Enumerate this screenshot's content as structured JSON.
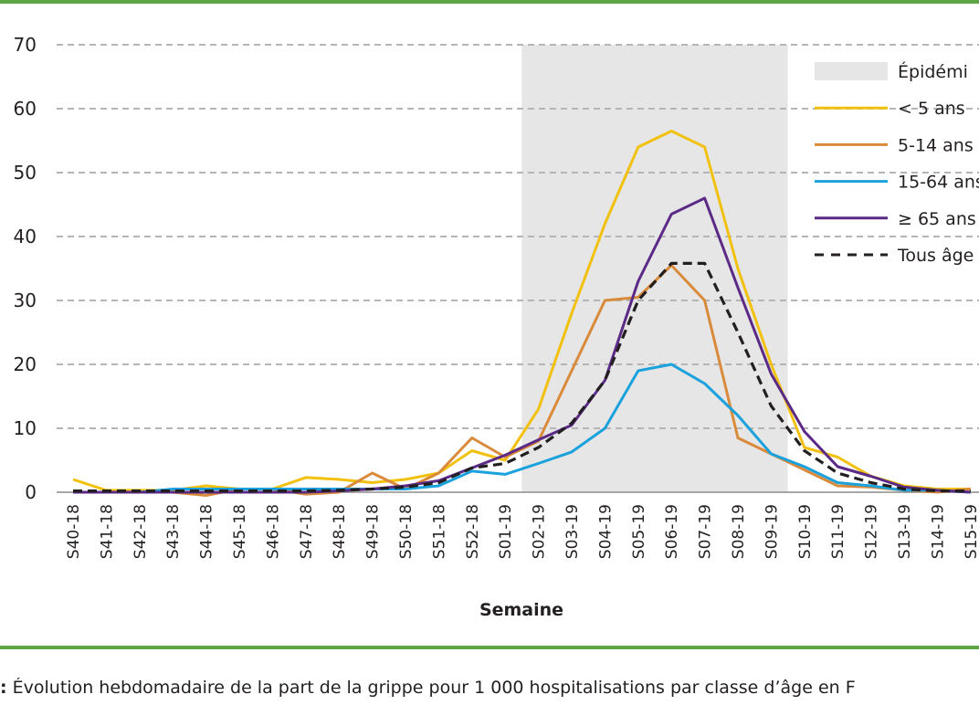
{
  "colors": {
    "rule": "#5ea545",
    "band": "#e6e6e6",
    "grid": "#b5b5b5"
  },
  "caption": {
    "prefix": ":",
    "text": " Évolution hebdomadaire de la part de la grippe pour 1 000 hospitalisations par classe d’âge en F"
  },
  "chart_data": {
    "type": "line",
    "title": "",
    "xlabel": "Semaine",
    "ylabel": "",
    "ylim": [
      0,
      70
    ],
    "yticks": [
      0,
      10,
      20,
      30,
      40,
      50,
      60,
      70
    ],
    "grid": true,
    "legend_position": "top-right",
    "categories": [
      "S40-18",
      "S41-18",
      "S42-18",
      "S43-18",
      "S44-18",
      "S45-18",
      "S46-18",
      "S47-18",
      "S48-18",
      "S49-18",
      "S50-18",
      "S51-18",
      "S52-18",
      "S01-19",
      "S02-19",
      "S03-19",
      "S04-19",
      "S05-19",
      "S06-19",
      "S07-19",
      "S08-19",
      "S09-19",
      "S10-19",
      "S11-19",
      "S12-19",
      "S13-19",
      "S14-19",
      "S15-19"
    ],
    "epidemic": {
      "label": "Épidémi",
      "from": "S02-19",
      "to": "S09-19",
      "color": "#e6e6e6"
    },
    "series": [
      {
        "name": "< 5 ans",
        "color": "#f2c10f",
        "dash": false,
        "values": [
          2,
          0.3,
          0.3,
          0.3,
          1,
          0.5,
          0.5,
          2.3,
          2,
          1.5,
          2,
          3,
          6.5,
          5,
          13,
          28,
          42,
          54,
          56.5,
          54,
          35,
          20,
          7,
          5.5,
          2.5,
          1,
          0.5,
          0.5
        ]
      },
      {
        "name": "5-14 ans",
        "color": "#d98a3a",
        "dash": false,
        "values": [
          0,
          0,
          0,
          0,
          -0.5,
          0.5,
          0.5,
          -0.3,
          0,
          3,
          0.5,
          3,
          8.5,
          5.5,
          8,
          19,
          30,
          30.5,
          35.5,
          30,
          8.5,
          6,
          3.5,
          1,
          0.8,
          0.3,
          0,
          0.5
        ]
      },
      {
        "name": "15-64 ans",
        "color": "#1ba1dc",
        "dash": false,
        "values": [
          0,
          0,
          0,
          0.5,
          0.5,
          0.5,
          0.5,
          0.5,
          0.5,
          0.5,
          0.5,
          1,
          3.3,
          2.8,
          4.5,
          6.3,
          10,
          19,
          20,
          17,
          12,
          6,
          4,
          1.5,
          1,
          0.3,
          0.3,
          0
        ]
      },
      {
        "name": "≥ 65 ans",
        "color": "#5b2a86",
        "dash": false,
        "values": [
          0,
          0,
          0,
          0,
          0,
          0,
          0,
          0,
          0.2,
          0.5,
          1,
          1.8,
          3.8,
          5.8,
          8.2,
          10.5,
          17.5,
          33,
          43.5,
          46,
          32,
          18.5,
          9.5,
          4,
          2.5,
          0.8,
          0.3,
          0
        ]
      },
      {
        "name": "Tous âge",
        "color": "#231f20",
        "dash": true,
        "values": [
          0.2,
          0.2,
          0.2,
          0.2,
          0.2,
          0.2,
          0.2,
          0.2,
          0.3,
          0.5,
          0.8,
          1.5,
          3.8,
          4.5,
          7,
          10.8,
          17.5,
          30,
          35.8,
          35.8,
          25,
          13.5,
          6.5,
          3,
          1.5,
          0.5,
          0.2,
          0.2
        ]
      }
    ]
  }
}
